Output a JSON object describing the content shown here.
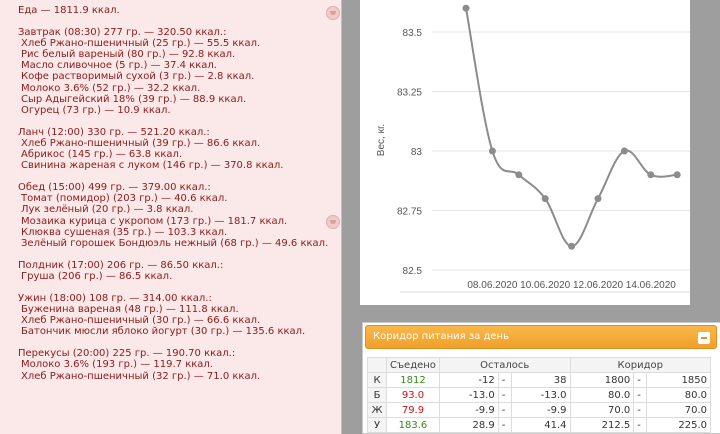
{
  "food_log": {
    "total": "Еда — 1811.9 ккал.",
    "meals": [
      {
        "header": "Завтрак (08:30) 277 гр. — 320.50 ккал.:",
        "items": [
          "Хлеб Ржано-пшеничный (25 гр.) — 55.5 ккал.",
          "Рис белый вареный (80 гр.) — 92.8 ккал.",
          "Масло сливочное (5 гр.) — 37.4 ккал.",
          "Кофе растворимый сухой (3 гр.) — 2.8 ккал.",
          "Молоко 3.6% (52 гр.) — 32.2 ккал.",
          "Сыр Адыгейский 18% (39 гр.) — 88.9 ккал.",
          "Огурец (73 гр.) — 10.9 ккал."
        ]
      },
      {
        "header": "Ланч (12:00) 330 гр. — 521.20 ккал.:",
        "items": [
          "Хлеб Ржано-пшеничный (39 гр.) — 86.6 ккал.",
          "Абрикос (145 гр.) — 63.8 ккал.",
          "Свинина жареная с луком (146 гр.) — 370.8 ккал."
        ]
      },
      {
        "header": "Обед (15:00) 499 гр. — 379.00 ккал.:",
        "items": [
          "Томат (помидор) (203 гр.) — 40.6 ккал.",
          "Лук зелёный (20 гр.) — 3.8 ккал.",
          "Мозаика курица с укропом (173 гр.) — 181.7 ккал.",
          "Клюква сушеная (35 гр.) — 103.3 ккал.",
          "Зелёный горошек Бондюэль нежный (68 гр.) — 49.6 ккал."
        ]
      },
      {
        "header": "Полдник (17:00) 206 гр. — 86.50 ккал.:",
        "items": [
          "Груша (206 гр.) — 86.5 ккал."
        ]
      },
      {
        "header": "Ужин (18:00) 108 гр. — 314.00 ккал.:",
        "items": [
          "Буженина вареная (48 гр.) — 111.8 ккал.",
          "Хлеб Ржано-пшеничный (30 гр.) — 66.6 ккал.",
          "Батончик мюсли яблоко йогурт (30 гр.) — 135.6 ккал."
        ]
      },
      {
        "header": "Перекусы (20:00) 225 гр. — 190.70 ккал.:",
        "items": [
          "Молоко 3.6% (193 гр.) — 119.7 ккал.",
          "Хлеб Ржано-пшеничный (32 гр.) — 71.0 ккал."
        ]
      }
    ],
    "text_color": "#8b1a1a"
  },
  "chart_data": {
    "type": "line",
    "ylabel": "Вес, кг.",
    "x_tick_labels": [
      "08.06.2020",
      "10.06.2020",
      "12.06.2020",
      "14.06.2020"
    ],
    "y_tick_labels": [
      "83.5",
      "83.25",
      "83",
      "82.75",
      "82.5"
    ],
    "ylim": [
      82.5,
      83.5
    ],
    "x": [
      "07.06.2020",
      "08.06.2020",
      "09.06.2020",
      "10.06.2020",
      "11.06.2020",
      "12.06.2020",
      "13.06.2020",
      "14.06.2020",
      "15.06.2020"
    ],
    "values": [
      83.6,
      83.0,
      82.9,
      82.8,
      82.6,
      82.8,
      83.0,
      82.9,
      82.9
    ],
    "line_color": "#8c8c8c",
    "grid": true
  },
  "corridor": {
    "title": "Коридор питания за день",
    "header_color": "#f4a93a",
    "columns": [
      "Съедено",
      "Осталось",
      "Коридор"
    ],
    "rows": [
      {
        "key": "К",
        "eaten": "1812",
        "eaten_color": "#3a8a1a",
        "left_min": "-12",
        "left_max": "38",
        "corr_min": "1800",
        "corr_max": "1850"
      },
      {
        "key": "Б",
        "eaten": "93.0",
        "eaten_color": "#cc1111",
        "left_min": "-13.0",
        "left_max": "-13.0",
        "corr_min": "80.0",
        "corr_max": "80.0"
      },
      {
        "key": "Ж",
        "eaten": "79.9",
        "eaten_color": "#cc1111",
        "left_min": "-9.9",
        "left_max": "-9.9",
        "corr_min": "70.0",
        "corr_max": "70.0"
      },
      {
        "key": "У",
        "eaten": "183.6",
        "eaten_color": "#3a8a1a",
        "left_min": "28.9",
        "left_max": "41.4",
        "corr_min": "212.5",
        "corr_max": "225.0"
      }
    ]
  }
}
